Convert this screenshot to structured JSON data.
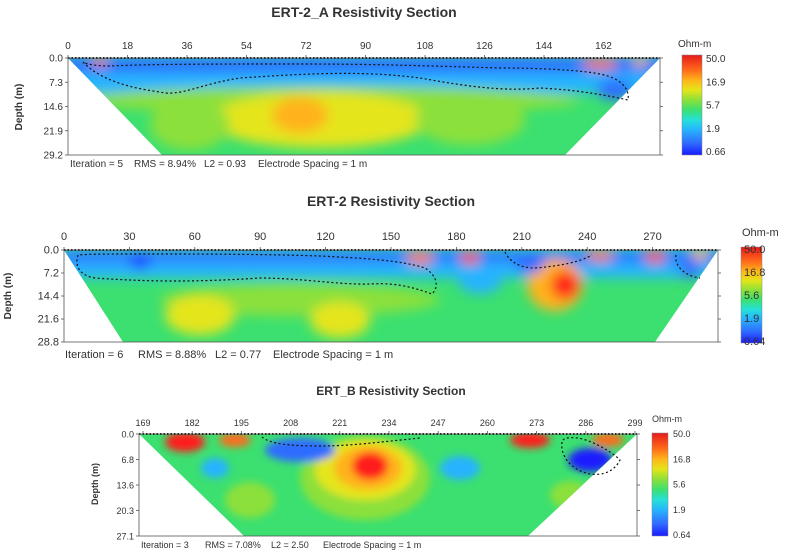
{
  "colorbar_colors": [
    "#1a1aff",
    "#2f6cff",
    "#27b3ff",
    "#26e0d9",
    "#3be070",
    "#8ce03a",
    "#e5e51a",
    "#ffb21a",
    "#ff6a1a",
    "#ff1a1a",
    "#e61a1a"
  ],
  "chart_data": [
    {
      "type": "heatmap",
      "title": "ERT-2_A Resistivity Section",
      "ylabel": "Depth (m)",
      "x_ticks": [
        "0",
        "18",
        "36",
        "54",
        "72",
        "90",
        "108",
        "126",
        "144",
        "162"
      ],
      "x_range": [
        0,
        180
      ],
      "y_ticks": [
        "0.0",
        "7.3",
        "14.6",
        "21.9",
        "29.2"
      ],
      "y_range": [
        0,
        29.2
      ],
      "colorbar_unit": "Ohm-m",
      "colorbar_ticks": [
        "50.0",
        "16.9",
        "5.7",
        "1.9",
        "0.66"
      ],
      "footer": {
        "iteration": "Iteration = 5",
        "rms": "RMS = 8.94%",
        "l2": "L2 = 0.93",
        "spacing": "Electrode Spacing = 1 m"
      }
    },
    {
      "type": "heatmap",
      "title": "ERT-2 Resistivity Section",
      "ylabel": "Depth (m)",
      "x_ticks": [
        "0",
        "30",
        "60",
        "90",
        "120",
        "150",
        "180",
        "210",
        "240",
        "270"
      ],
      "x_range": [
        0,
        300
      ],
      "y_ticks": [
        "0.0",
        "7.2",
        "14.4",
        "21.6",
        "28.8"
      ],
      "y_range": [
        0,
        28.8
      ],
      "colorbar_unit": "Ohm-m",
      "colorbar_ticks": [
        "50.0",
        "16.8",
        "5.6",
        "1.9",
        "0.64"
      ],
      "footer": {
        "iteration": "Iteration = 6",
        "rms": "RMS = 8.88%",
        "l2": "L2 = 0.77",
        "spacing": "Electrode Spacing = 1 m"
      }
    },
    {
      "type": "heatmap",
      "title": "ERT_B Resistivity Section",
      "ylabel": "Depth (m)",
      "x_ticks": [
        "169",
        "182",
        "195",
        "208",
        "221",
        "234",
        "247",
        "260",
        "273",
        "286",
        "299"
      ],
      "x_range": [
        169,
        299
      ],
      "y_ticks": [
        "0.0",
        "6.8",
        "13.6",
        "20.3",
        "27.1"
      ],
      "y_range": [
        0,
        27.1
      ],
      "colorbar_unit": "Ohm-m",
      "colorbar_ticks": [
        "50.0",
        "16.8",
        "5.6",
        "1.9",
        "0.64"
      ],
      "footer": {
        "iteration": "Iteration = 3",
        "rms": "RMS = 7.08%",
        "l2": "L2 = 2.50",
        "spacing": "Electrode Spacing = 1 m"
      }
    }
  ]
}
